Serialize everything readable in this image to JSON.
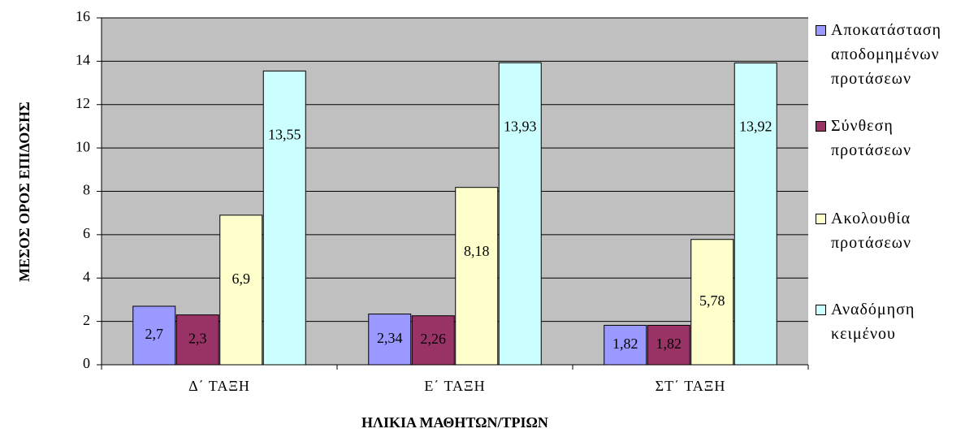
{
  "chart_data": {
    "type": "bar",
    "y_label": "ΜΕΣΟΣ ΟΡΟΣ ΕΠΙΔΟΣΗΣ",
    "x_label": "ΗΛΙΚΙΑ ΜΑΘΗΤΩΝ/ΤΡΙΩΝ",
    "categories": [
      "Δ΄ ΤΑΞΗ",
      "Ε΄ ΤΑΞΗ",
      "ΣΤ΄ ΤΑΞΗ"
    ],
    "series": [
      {
        "name": "Αποκατάσταση αποδομημένων προτάσεων",
        "color": "#9999ff",
        "values": [
          2.7,
          2.34,
          1.82
        ],
        "value_labels": [
          "2,7",
          "2,34",
          "1,82"
        ]
      },
      {
        "name": "Σύνθεση προτάσεων",
        "color": "#993366",
        "values": [
          2.3,
          2.26,
          1.82
        ],
        "value_labels": [
          "2,3",
          "2,26",
          "1,82"
        ]
      },
      {
        "name": "Ακολουθία προτάσεων",
        "color": "#ffffcc",
        "values": [
          6.9,
          8.18,
          5.78
        ],
        "value_labels": [
          "6,9",
          "8,18",
          "5,78"
        ]
      },
      {
        "name": "Αναδόμηση κειμένου",
        "color": "#ccffff",
        "values": [
          13.55,
          13.93,
          13.92
        ],
        "value_labels": [
          "13,55",
          "13,93",
          "13,92"
        ]
      }
    ],
    "ylim": [
      0,
      16
    ],
    "yticks": [
      0,
      2,
      4,
      6,
      8,
      10,
      12,
      14,
      16
    ],
    "grid": true,
    "legend": "right"
  }
}
